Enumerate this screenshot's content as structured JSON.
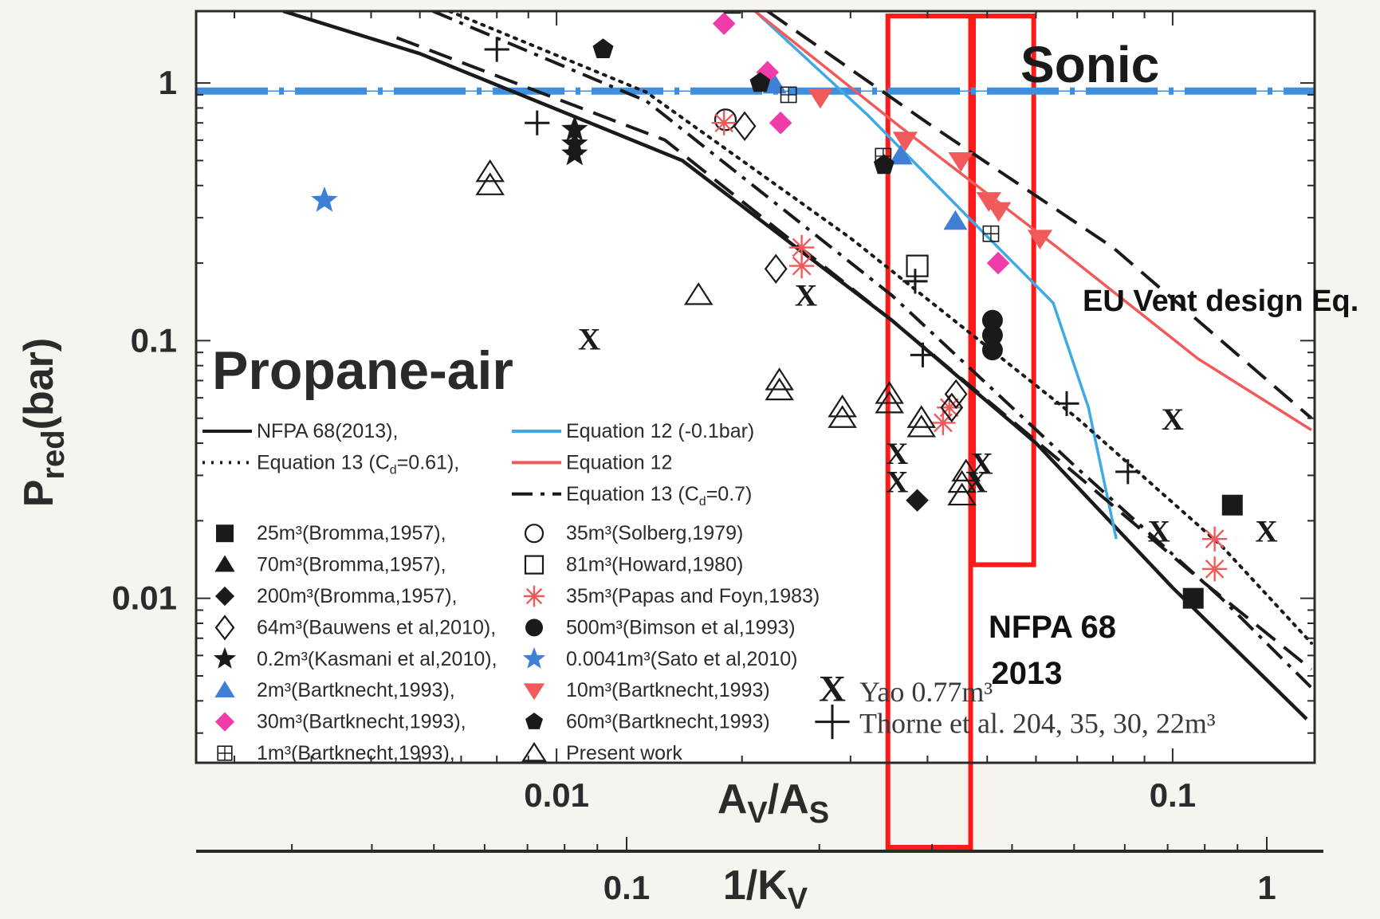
{
  "chart_data": {
    "type": "scatter",
    "x_scale": "log",
    "y_scale": "log",
    "xlabel": "A_V/A_S",
    "ylabel": "P_red(bar)",
    "secondary_xlabel": "1/K_V",
    "xlim": [
      0.0026,
      0.17
    ],
    "ylim": [
      0.0023,
      1.9
    ],
    "x_ticks": [
      {
        "v": 0.01,
        "label": "0.01"
      },
      {
        "v": 0.1,
        "label": "0.1"
      }
    ],
    "y_ticks": [
      {
        "v": 0.01,
        "label": "0.01"
      },
      {
        "v": 0.1,
        "label": "0.1"
      },
      {
        "v": 1,
        "label": "1"
      }
    ],
    "secondary_x_ticks": [
      {
        "v": 0.1,
        "label": "0.1"
      },
      {
        "v": 1,
        "label": "1"
      }
    ],
    "annotations": {
      "sonic": "Sonic",
      "propane": "Propane-air",
      "eu": "EU Vent design Eq.",
      "nfpa_line1": "NFPA 68",
      "nfpa_line2": "2013"
    },
    "colors": {
      "black": "#1a1a1a",
      "blue": "#3fa9e6",
      "red": "#f05a5a",
      "blue_marker": "#3f7fd6",
      "magenta": "#f03ca8",
      "red_box": "#ff1a1a",
      "sonic_line": "#3f8fe0"
    },
    "sonic_level": 0.93,
    "highlight_bands": [
      {
        "x0": 0.0345,
        "x1": 0.047
      },
      {
        "x0": 0.0475,
        "x1": 0.0595,
        "y0": 0.0135
      }
    ],
    "series": [
      {
        "name": "NFPA 68(2013),",
        "style": "solid",
        "color": "#1a1a1a",
        "points": [
          [
            0.0036,
            1.9
          ],
          [
            0.006,
            1.3
          ],
          [
            0.016,
            0.5
          ],
          [
            0.035,
            0.12
          ],
          [
            0.06,
            0.04
          ],
          [
            0.1,
            0.011
          ],
          [
            0.165,
            0.0034
          ]
        ]
      },
      {
        "name": "Equation 12 (-0.1bar)",
        "style": "solid",
        "color": "#3fa9e6",
        "points": [
          [
            0.021,
            1.9
          ],
          [
            0.032,
            0.75
          ],
          [
            0.048,
            0.28
          ],
          [
            0.064,
            0.14
          ],
          [
            0.073,
            0.055
          ],
          [
            0.081,
            0.017
          ]
        ]
      },
      {
        "name": "Equation 13 (C_d=0.61),",
        "style": "dotted",
        "color": "#1a1a1a",
        "points": [
          [
            0.0067,
            1.9
          ],
          [
            0.014,
            0.92
          ],
          [
            0.03,
            0.25
          ],
          [
            0.07,
            0.05
          ],
          [
            0.12,
            0.016
          ],
          [
            0.168,
            0.0067
          ]
        ]
      },
      {
        "name": "Equation 12",
        "style": "solid",
        "color": "#f05a5a",
        "points": [
          [
            0.021,
            1.9
          ],
          [
            0.036,
            0.68
          ],
          [
            0.065,
            0.23
          ],
          [
            0.11,
            0.085
          ],
          [
            0.168,
            0.045
          ]
        ]
      },
      {
        "name": "Equation 13 (C_d=0.7)",
        "style": "dashdot",
        "color": "#1a1a1a",
        "points": [
          [
            0.0063,
            1.9
          ],
          [
            0.014,
            0.85
          ],
          [
            0.035,
            0.15
          ],
          [
            0.07,
            0.032
          ],
          [
            0.12,
            0.01
          ],
          [
            0.168,
            0.0045
          ]
        ]
      },
      {
        "name": "",
        "style": "dashed",
        "color": "#1a1a1a",
        "points": [
          [
            0.0055,
            1.5
          ],
          [
            0.015,
            0.6
          ],
          [
            0.035,
            0.12
          ],
          [
            0.07,
            0.03
          ],
          [
            0.11,
            0.012
          ],
          [
            0.168,
            0.0053
          ]
        ]
      },
      {
        "name": "",
        "style": "dashed",
        "color": "#1a1a1a",
        "points": [
          [
            0.022,
            1.9
          ],
          [
            0.04,
            0.7
          ],
          [
            0.08,
            0.23
          ],
          [
            0.168,
            0.05
          ]
        ]
      }
    ],
    "point_groups": [
      {
        "name": "25m³(Bromma,1957),",
        "marker": "square",
        "color": "#1a1a1a",
        "points": [
          [
            0.125,
            0.023
          ],
          [
            0.108,
            0.01
          ]
        ]
      },
      {
        "name": "35m³(Solberg,1979)",
        "marker": "circle-open",
        "color": "#1a1a1a",
        "points": [
          [
            0.0188,
            0.72
          ]
        ]
      },
      {
        "name": "70m³(Bromma,1957),",
        "marker": "triangle",
        "color": "#1a1a1a",
        "points": []
      },
      {
        "name": "81m³(Howard,1980)",
        "marker": "square-open",
        "color": "#1a1a1a",
        "points": [
          [
            0.0385,
            0.195
          ]
        ]
      },
      {
        "name": "200m³(Bromma,1957),",
        "marker": "diamond",
        "color": "#1a1a1a",
        "points": [
          [
            0.0385,
            0.024
          ]
        ]
      },
      {
        "name": "35m³(Papas and Foyn,1983)",
        "marker": "asterisk",
        "color": "#f05a5a",
        "points": [
          [
            0.0187,
            0.7
          ],
          [
            0.025,
            0.23
          ],
          [
            0.025,
            0.195
          ],
          [
            0.0434,
            0.055
          ],
          [
            0.0424,
            0.048
          ],
          [
            0.117,
            0.017
          ],
          [
            0.117,
            0.013
          ]
        ]
      },
      {
        "name": "64m³(Bauwens et al,2010),",
        "marker": "diamond-open",
        "color": "#1a1a1a",
        "points": [
          [
            0.0202,
            0.68
          ],
          [
            0.0227,
            0.19
          ],
          [
            0.0445,
            0.062
          ],
          [
            0.0438,
            0.055
          ]
        ]
      },
      {
        "name": "500m³(Bimson et al,1993)",
        "marker": "circle",
        "color": "#1a1a1a",
        "points": [
          [
            0.051,
            0.12
          ],
          [
            0.051,
            0.105
          ],
          [
            0.051,
            0.092
          ]
        ]
      },
      {
        "name": "0.2m³(Kasmani et al,2010),",
        "marker": "star",
        "color": "#1a1a1a",
        "points": [
          [
            0.0107,
            0.66
          ],
          [
            0.0107,
            0.58
          ],
          [
            0.0107,
            0.53
          ]
        ]
      },
      {
        "name": "0.0041m³(Sato et al,2010)",
        "marker": "star",
        "color": "#3f7fd6",
        "points": [
          [
            0.0042,
            0.35
          ]
        ]
      },
      {
        "name": "2m³(Bartknecht,1993),",
        "marker": "triangle",
        "color": "#3f7fd6",
        "points": [
          [
            0.0226,
            0.98
          ],
          [
            0.0362,
            0.52
          ],
          [
            0.0444,
            0.29
          ]
        ]
      },
      {
        "name": "10m³(Bartknecht,1993)",
        "marker": "triangle-down",
        "color": "#f05a5a",
        "points": [
          [
            0.0268,
            0.88
          ],
          [
            0.0368,
            0.6
          ],
          [
            0.0453,
            0.5
          ],
          [
            0.0503,
            0.35
          ],
          [
            0.0522,
            0.32
          ],
          [
            0.0609,
            0.25
          ]
        ]
      },
      {
        "name": "30m³(Bartknecht,1993),",
        "marker": "diamond",
        "color": "#f03ca8",
        "points": [
          [
            0.0187,
            1.7
          ],
          [
            0.022,
            1.1
          ],
          [
            0.0231,
            0.7
          ],
          [
            0.0521,
            0.2
          ]
        ]
      },
      {
        "name": "60m³(Bartknecht,1993)",
        "marker": "pentagon",
        "color": "#1a1a1a",
        "points": [
          [
            0.0119,
            1.35
          ],
          [
            0.0214,
            1.0
          ],
          [
            0.034,
            0.48
          ]
        ]
      },
      {
        "name": "1m³(Bartknecht,1993),",
        "marker": "boxplus",
        "color": "#1a1a1a",
        "points": [
          [
            0.0193,
            2.0
          ],
          [
            0.0238,
            0.9
          ],
          [
            0.0339,
            0.52
          ],
          [
            0.0507,
            0.26
          ]
        ]
      },
      {
        "name": "Present work",
        "marker": "triangle-open",
        "color": "#1a1a1a",
        "points": [
          [
            0.0078,
            0.45
          ],
          [
            0.0078,
            0.4
          ],
          [
            0.017,
            0.15
          ],
          [
            0.023,
            0.07
          ],
          [
            0.023,
            0.064
          ],
          [
            0.0291,
            0.055
          ],
          [
            0.0291,
            0.05
          ],
          [
            0.0347,
            0.062
          ],
          [
            0.0347,
            0.057
          ],
          [
            0.0391,
            0.05
          ],
          [
            0.0391,
            0.046
          ],
          [
            0.0455,
            0.025
          ],
          [
            0.0455,
            0.028
          ],
          [
            0.0462,
            0.031
          ]
        ]
      },
      {
        "name": "Yao 0.77m³",
        "marker": "x",
        "color": "#1a1a1a",
        "points": [
          [
            0.0113,
            0.1
          ],
          [
            0.0254,
            0.148
          ],
          [
            0.0357,
            0.036
          ],
          [
            0.0357,
            0.028
          ],
          [
            0.049,
            0.033
          ],
          [
            0.048,
            0.028
          ],
          [
            0.1,
            0.049
          ],
          [
            0.095,
            0.018
          ],
          [
            0.142,
            0.018
          ]
        ]
      },
      {
        "name": "Thorne et al. 204, 35, 30, 22m³",
        "marker": "plus",
        "color": "#1a1a1a",
        "points": [
          [
            0.008,
            1.35
          ],
          [
            0.0093,
            0.7
          ],
          [
            0.0382,
            0.17
          ],
          [
            0.0393,
            0.088
          ],
          [
            0.0673,
            0.057
          ],
          [
            0.0846,
            0.031
          ]
        ]
      }
    ],
    "legend": [
      {
        "row": 0,
        "col": 0,
        "ref": "series.0"
      },
      {
        "row": 0,
        "col": 1,
        "ref": "series.1"
      },
      {
        "row": 1,
        "col": 0,
        "ref": "series.2"
      },
      {
        "row": 1,
        "col": 1,
        "ref": "series.3"
      },
      {
        "row": 2,
        "col": 1,
        "ref": "series.4"
      },
      {
        "row": 3,
        "col": 0,
        "ref": "point_groups.0"
      },
      {
        "row": 3,
        "col": 1,
        "ref": "point_groups.1"
      },
      {
        "row": 4,
        "col": 0,
        "ref": "point_groups.2"
      },
      {
        "row": 4,
        "col": 1,
        "ref": "point_groups.3"
      },
      {
        "row": 5,
        "col": 0,
        "ref": "point_groups.4"
      },
      {
        "row": 5,
        "col": 1,
        "ref": "point_groups.5"
      },
      {
        "row": 6,
        "col": 0,
        "ref": "point_groups.6"
      },
      {
        "row": 6,
        "col": 1,
        "ref": "point_groups.7"
      },
      {
        "row": 7,
        "col": 0,
        "ref": "point_groups.8"
      },
      {
        "row": 7,
        "col": 1,
        "ref": "point_groups.9"
      },
      {
        "row": 8,
        "col": 0,
        "ref": "point_groups.10"
      },
      {
        "row": 8,
        "col": 1,
        "ref": "point_groups.11"
      },
      {
        "row": 8,
        "col": 2,
        "ref": "point_groups.16"
      },
      {
        "row": 9,
        "col": 0,
        "ref": "point_groups.12"
      },
      {
        "row": 9,
        "col": 1,
        "ref": "point_groups.13"
      },
      {
        "row": 9,
        "col": 2,
        "ref": "point_groups.17"
      },
      {
        "row": 10,
        "col": 0,
        "ref": "point_groups.14"
      },
      {
        "row": 10,
        "col": 1,
        "ref": "point_groups.15"
      }
    ]
  }
}
